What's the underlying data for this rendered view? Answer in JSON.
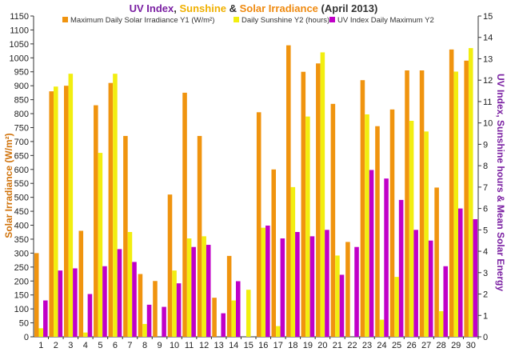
{
  "chart_data": {
    "type": "bar",
    "title_parts": [
      {
        "text": "UV Index",
        "color": "#7a1fa2"
      },
      {
        "text": ", ",
        "color": "#333333"
      },
      {
        "text": "Sunshine",
        "color": "#f0b000"
      },
      {
        "text": " & ",
        "color": "#333333"
      },
      {
        "text": "Solar Irradiance",
        "color": "#ef8a10"
      },
      {
        "text": " (April 2013)",
        "color": "#333333"
      }
    ],
    "ylabel_left": "Solar Irradiance (W/m²)",
    "ylabel_right": "UV Index, Sunshine hours & Mean Solar Energy",
    "xlabel": "",
    "ylim_left": [
      0,
      1150
    ],
    "ylim_right": [
      0,
      15
    ],
    "categories": [
      "1",
      "2",
      "3",
      "4",
      "5",
      "6",
      "7",
      "8",
      "9",
      "10",
      "11",
      "12",
      "13",
      "14",
      "15",
      "16",
      "17",
      "18",
      "19",
      "20",
      "21",
      "22",
      "23",
      "24",
      "25",
      "26",
      "27",
      "28",
      "29",
      "30"
    ],
    "series": [
      {
        "name": "Maximum Daily Solar Irradiance Y1 (W/m²)",
        "axis": "left",
        "color": "#f0940f",
        "values": [
          300,
          880,
          900,
          380,
          830,
          910,
          720,
          225,
          200,
          510,
          875,
          720,
          140,
          290,
          0,
          805,
          600,
          1045,
          950,
          980,
          835,
          340,
          920,
          755,
          815,
          955,
          955,
          535,
          1030,
          990
        ]
      },
      {
        "name": "Daily Sunshine Y2 (hours)",
        "axis": "right",
        "color": "#f2ee10",
        "values": [
          0.4,
          11.7,
          12.3,
          0.2,
          8.6,
          12.3,
          4.9,
          0.6,
          0.0,
          3.1,
          4.6,
          4.7,
          0.0,
          1.7,
          2.2,
          5.1,
          0.5,
          7.0,
          10.3,
          13.3,
          3.8,
          0.0,
          10.4,
          0.8,
          2.8,
          10.1,
          9.6,
          1.2,
          12.4,
          13.5
        ]
      },
      {
        "name": "UV Index Daily Maximum Y2",
        "axis": "right",
        "color": "#c000c8",
        "values": [
          1.7,
          3.1,
          3.2,
          2.0,
          3.3,
          4.1,
          3.5,
          1.5,
          1.4,
          2.5,
          4.2,
          4.3,
          1.1,
          2.6,
          0.0,
          5.2,
          4.6,
          4.9,
          4.7,
          5.0,
          2.9,
          4.2,
          7.8,
          7.4,
          6.4,
          5.0,
          4.5,
          3.3,
          6.0,
          5.5
        ]
      }
    ],
    "grid": false,
    "legend_position": "top"
  }
}
